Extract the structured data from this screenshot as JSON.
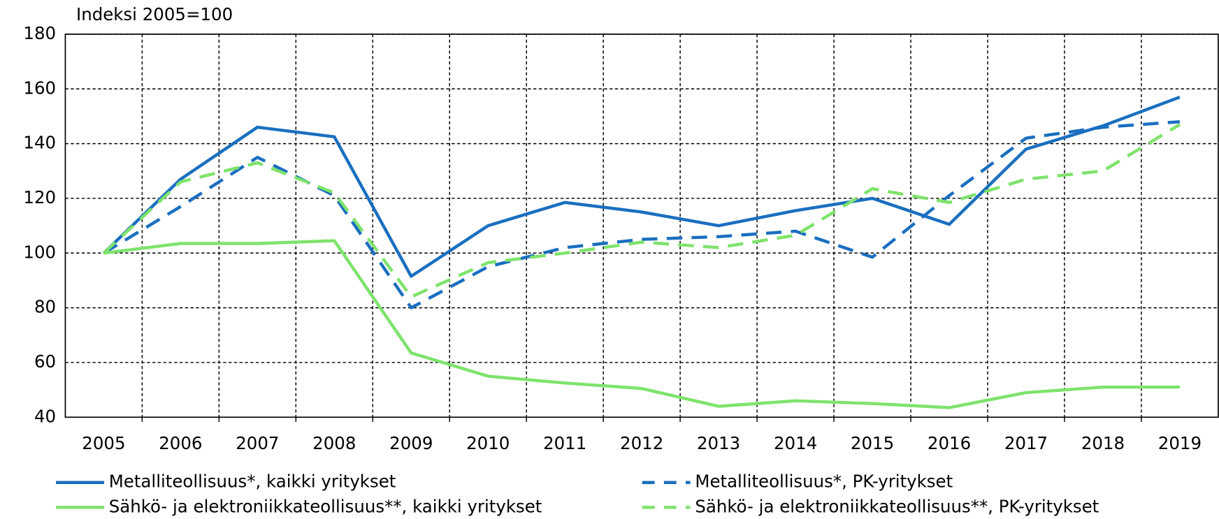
{
  "chart_data": {
    "type": "line",
    "y_axis_label": "Indeksi 2005=100",
    "categories": [
      "2005",
      "2006",
      "2007",
      "2008",
      "2009",
      "2010",
      "2011",
      "2012",
      "2013",
      "2014",
      "2015",
      "2016",
      "2017",
      "2018",
      "2019"
    ],
    "series": [
      {
        "name": "Metalliteollisuus*, kaikki yritykset",
        "color": "#1a6fc0",
        "style": "solid",
        "values": [
          100,
          127,
          146,
          142.5,
          91.5,
          110,
          118.5,
          115,
          110,
          115.5,
          120,
          110.5,
          138,
          146.5,
          157
        ]
      },
      {
        "name": "Metalliteollisuus*, PK-yritykset",
        "color": "#1a6fc0",
        "style": "dashed",
        "values": [
          100,
          117,
          135,
          121,
          80,
          95,
          102,
          105,
          106,
          108,
          98.5,
          121,
          142,
          146,
          148
        ]
      },
      {
        "name": "Sähkö- ja elektroniikkateollisuus**, kaikki yritykset",
        "color": "#7ee36c",
        "style": "solid",
        "values": [
          100,
          103.5,
          103.5,
          104.5,
          63.5,
          55,
          52.5,
          50.5,
          44,
          46,
          45,
          43.5,
          49,
          51,
          51
        ]
      },
      {
        "name": "Sähkö- ja elektroniikkateollisuus**, PK-yritykset",
        "color": "#7ee36c",
        "style": "dashed",
        "values": [
          100,
          126,
          133,
          122,
          84,
          96.5,
          100,
          104,
          102,
          106.5,
          123.5,
          118.5,
          127,
          130,
          147
        ]
      }
    ],
    "ylim": [
      40,
      180
    ],
    "yticks": [
      40,
      60,
      80,
      100,
      120,
      140,
      160,
      180
    ],
    "grid": true
  }
}
